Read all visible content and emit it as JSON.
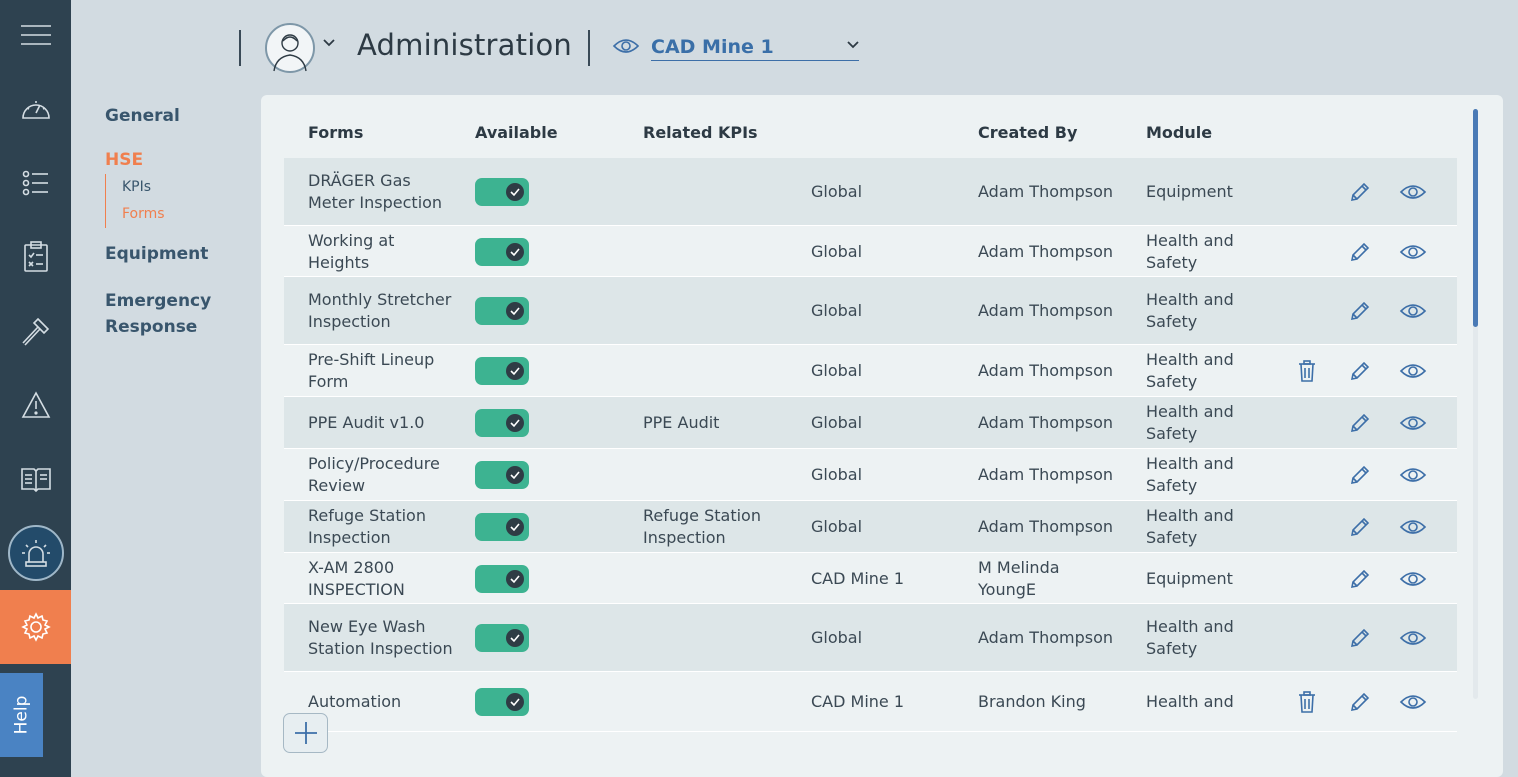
{
  "header": {
    "title": "Administration",
    "site": "CAD Mine 1"
  },
  "help_label": "Help",
  "subnav": {
    "general": "General",
    "hse": "HSE",
    "hse_children": [
      "KPIs",
      "Forms"
    ],
    "equipment": "Equipment",
    "emergency": "Emergency Response"
  },
  "table": {
    "headers": {
      "forms": "Forms",
      "available": "Available",
      "related_kpis": "Related KPIs",
      "created_by": "Created By",
      "module": "Module"
    },
    "rows": [
      {
        "form": "DRÄGER Gas Meter Inspection",
        "available": true,
        "kpi": "",
        "scope": "Global",
        "by": "Adam Thompson",
        "module": "Equipment",
        "deletable": false
      },
      {
        "form": "Working at Heights",
        "available": true,
        "kpi": "",
        "scope": "Global",
        "by": "Adam Thompson",
        "module": "Health and Safety",
        "deletable": false
      },
      {
        "form": "Monthly Stretcher Inspection",
        "available": true,
        "kpi": "",
        "scope": "Global",
        "by": "Adam Thompson",
        "module": "Health and Safety",
        "deletable": false
      },
      {
        "form": "Pre-Shift Lineup Form",
        "available": true,
        "kpi": "",
        "scope": "Global",
        "by": "Adam Thompson",
        "module": "Health and Safety",
        "deletable": true
      },
      {
        "form": "PPE Audit v1.0",
        "available": true,
        "kpi": "PPE Audit",
        "scope": "Global",
        "by": "Adam Thompson",
        "module": "Health and Safety",
        "deletable": false
      },
      {
        "form": "Policy/Procedure Review",
        "available": true,
        "kpi": "",
        "scope": "Global",
        "by": "Adam Thompson",
        "module": "Health and Safety",
        "deletable": false
      },
      {
        "form": "Refuge Station Inspection",
        "available": true,
        "kpi": "Refuge Station Inspection",
        "scope": "Global",
        "by": "Adam Thompson",
        "module": "Health and Safety",
        "deletable": false
      },
      {
        "form": "X-AM 2800 INSPECTION",
        "available": true,
        "kpi": "",
        "scope": "CAD Mine 1",
        "by": "M Melinda YoungE",
        "module": "Equipment",
        "deletable": false
      },
      {
        "form": "New Eye Wash Station Inspection",
        "available": true,
        "kpi": "",
        "scope": "Global",
        "by": "Adam Thompson",
        "module": "Health and Safety",
        "deletable": false
      },
      {
        "form": "Automation",
        "available": true,
        "kpi": "",
        "scope": "CAD Mine 1",
        "by": "Brandon King",
        "module": "Health and",
        "deletable": true
      }
    ]
  }
}
